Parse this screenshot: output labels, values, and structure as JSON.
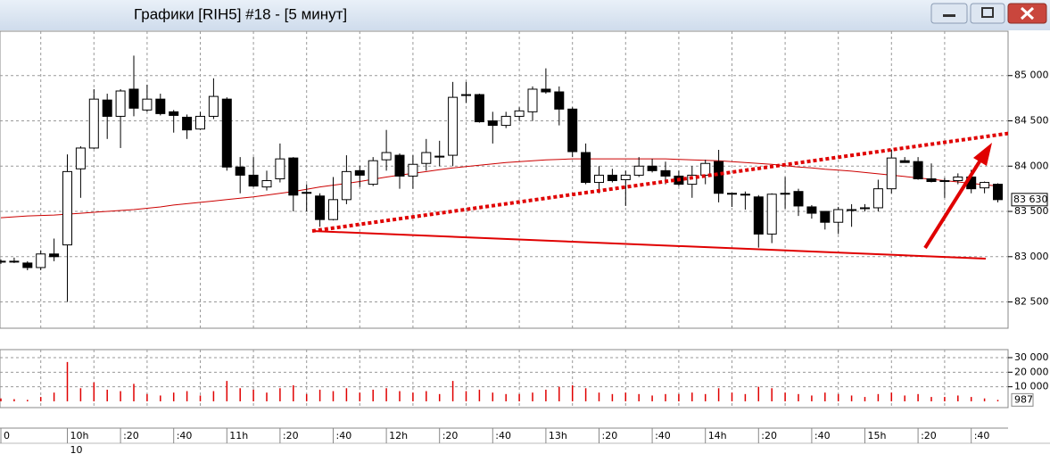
{
  "window": {
    "title": "Графики [RIH5] #18 - [5 минут]"
  },
  "chart_data": {
    "type": "candlestick",
    "categories": [
      "0",
      null,
      null,
      null,
      null,
      "10h",
      null,
      null,
      null,
      ":20",
      null,
      null,
      null,
      ":40",
      null,
      null,
      null,
      "11h",
      null,
      null,
      null,
      ":20",
      null,
      null,
      null,
      ":40",
      null,
      null,
      null,
      "12h",
      null,
      null,
      null,
      ":20",
      null,
      null,
      null,
      ":40",
      null,
      null,
      null,
      "13h",
      null,
      null,
      null,
      ":20",
      null,
      null,
      null,
      ":40",
      null,
      null,
      null,
      "14h",
      null,
      null,
      null,
      ":20",
      null,
      null,
      null,
      ":40",
      null,
      null,
      null,
      "15h",
      null,
      null,
      null,
      ":20",
      null,
      null,
      null,
      ":40",
      null,
      null
    ],
    "dates": [
      null,
      null,
      null,
      null,
      null,
      "10",
      null,
      null,
      null,
      null,
      null,
      null,
      null,
      null,
      null,
      null,
      null,
      null,
      null,
      null,
      null,
      null,
      null,
      null,
      null,
      null,
      null,
      null,
      null,
      null,
      null,
      null,
      null,
      null,
      null,
      null,
      null,
      null,
      null,
      null,
      null,
      null,
      null,
      null,
      null,
      null,
      null,
      null,
      null,
      null,
      null,
      null,
      null,
      null,
      null,
      null,
      null,
      null,
      null,
      null,
      null,
      null,
      null,
      null,
      null,
      null,
      null,
      null,
      null,
      null,
      null,
      null,
      null,
      null,
      null,
      null
    ],
    "open": [
      82940,
      82950,
      82930,
      82880,
      83030,
      83130,
      83970,
      84200,
      84730,
      84550,
      84850,
      84620,
      84740,
      84600,
      84540,
      84410,
      84550,
      84740,
      83990,
      83900,
      83770,
      83860,
      84090,
      83700,
      83670,
      83410,
      83630,
      83950,
      83800,
      84070,
      84120,
      83890,
      84030,
      84100,
      84120,
      84780,
      84790,
      84500,
      84450,
      84550,
      84600,
      84850,
      84820,
      84630,
      84150,
      83820,
      83900,
      83850,
      83900,
      84000,
      83950,
      83890,
      83800,
      83900,
      84050,
      83700,
      83690,
      83660,
      83250,
      83690,
      83720,
      83550,
      83500,
      83380,
      83510,
      83530,
      83540,
      83750,
      84060,
      84050,
      83860,
      83830,
      83840,
      83880,
      83760,
      83800
    ],
    "high": [
      82970,
      82990,
      82950,
      83070,
      83200,
      84130,
      84220,
      84850,
      84800,
      84850,
      85220,
      84900,
      84800,
      84620,
      84570,
      84600,
      84970,
      84760,
      84100,
      84100,
      83950,
      84250,
      84100,
      83800,
      83700,
      83880,
      84120,
      84000,
      84100,
      84400,
      84140,
      84120,
      84300,
      84280,
      84930,
      84930,
      84800,
      84600,
      84600,
      84650,
      84880,
      85080,
      84880,
      84650,
      84250,
      84000,
      83970,
      83950,
      84100,
      84080,
      84050,
      83950,
      84000,
      84070,
      84180,
      83700,
      83720,
      83680,
      83700,
      83880,
      83750,
      83570,
      83500,
      83550,
      83580,
      83580,
      83850,
      84180,
      84100,
      84100,
      84030,
      83870,
      83920,
      83960,
      83830,
      83810
    ],
    "low": [
      82920,
      82930,
      82850,
      82850,
      82950,
      82500,
      83650,
      84190,
      84300,
      84200,
      84550,
      84600,
      84560,
      84370,
      84300,
      84400,
      84520,
      83950,
      83700,
      83770,
      83730,
      83820,
      83500,
      83500,
      83330,
      83400,
      83580,
      83770,
      83780,
      83950,
      83750,
      83750,
      83950,
      84000,
      84000,
      84700,
      84480,
      84250,
      84420,
      84500,
      84500,
      84800,
      84450,
      84100,
      83800,
      83700,
      83820,
      83560,
      83880,
      83930,
      83800,
      83780,
      83650,
      83800,
      83600,
      83550,
      83520,
      83100,
      83150,
      83530,
      83450,
      83420,
      83300,
      83250,
      83330,
      83500,
      83500,
      83700,
      84040,
      83850,
      83820,
      83650,
      83800,
      83700,
      83700,
      83600
    ],
    "close": [
      82950,
      82950,
      82880,
      83030,
      83000,
      83940,
      84200,
      84740,
      84550,
      84830,
      84640,
      84740,
      84580,
      84560,
      84400,
      84550,
      84770,
      83990,
      83900,
      83780,
      83840,
      84080,
      83680,
      83710,
      83410,
      83630,
      83940,
      83900,
      84060,
      84150,
      83890,
      84020,
      84150,
      84110,
      84760,
      84790,
      84490,
      84450,
      84550,
      84610,
      84850,
      84820,
      84630,
      84160,
      83820,
      83900,
      83840,
      83900,
      84000,
      83950,
      83890,
      83800,
      83900,
      84030,
      83700,
      83690,
      83680,
      83250,
      83690,
      83700,
      83560,
      83480,
      83380,
      83520,
      83520,
      83540,
      83750,
      84090,
      84040,
      83860,
      83830,
      83840,
      83880,
      83750,
      83820,
      83630
    ],
    "ma": {
      "color": "#cc0000",
      "values": [
        83430,
        83440,
        83450,
        83455,
        83460,
        83470,
        83480,
        83490,
        83500,
        83510,
        83520,
        83535,
        83550,
        83570,
        83585,
        83600,
        83615,
        83630,
        83645,
        83660,
        83680,
        83700,
        83720,
        83745,
        83770,
        83790,
        83810,
        83830,
        83855,
        83880,
        83900,
        83920,
        83940,
        83960,
        83980,
        83995,
        84010,
        84025,
        84040,
        84050,
        84060,
        84070,
        84075,
        84080,
        84080,
        84080,
        84080,
        84080,
        84080,
        84080,
        84080,
        84075,
        84070,
        84065,
        84060,
        84050,
        84040,
        84030,
        84020,
        84005,
        83990,
        83980,
        83965,
        83955,
        83945,
        83930,
        83915,
        83900,
        83885,
        83870,
        83855,
        83840,
        83825,
        83810,
        83795,
        83780
      ]
    },
    "color_up": "#ffffff",
    "color_down": "#000000",
    "ylim": [
      82210,
      85490
    ],
    "yticks": [
      {
        "value": 82500,
        "label": "82 500"
      },
      {
        "value": 83000,
        "label": "83 000"
      },
      {
        "value": 83500,
        "label": "83 500"
      },
      {
        "value": 84000,
        "label": "84 000"
      },
      {
        "value": 84500,
        "label": "84 500"
      },
      {
        "value": 85000,
        "label": "85 000"
      }
    ],
    "last_price": {
      "value": 83630,
      "label": "83 630"
    },
    "grid": true,
    "volume": {
      "color": "#e00000",
      "values": [
        2000,
        1500,
        1000,
        3000,
        6000,
        27000,
        9000,
        13000,
        8000,
        7000,
        12000,
        5000,
        4000,
        6000,
        7000,
        4000,
        7000,
        14000,
        9000,
        8000,
        6000,
        9000,
        11000,
        5000,
        8000,
        7000,
        9000,
        6000,
        8000,
        9000,
        7000,
        6000,
        7000,
        5000,
        14000,
        7000,
        8000,
        6000,
        5000,
        5000,
        6000,
        8000,
        10000,
        11000,
        9000,
        6000,
        5000,
        6000,
        5000,
        4000,
        5000,
        5000,
        6000,
        5000,
        9000,
        6000,
        5000,
        10000,
        9000,
        6000,
        5000,
        4000,
        6000,
        5000,
        4000,
        3000,
        5000,
        6000,
        4000,
        5000,
        3000,
        3000,
        4000,
        3000,
        2000,
        987
      ],
      "ylim": [
        -4300,
        35500
      ],
      "yticks": [
        {
          "value": 10000,
          "label": "10 000"
        },
        {
          "value": 20000,
          "label": "20 000"
        },
        {
          "value": 30000,
          "label": "30 000"
        }
      ],
      "last_value": 987
    }
  }
}
